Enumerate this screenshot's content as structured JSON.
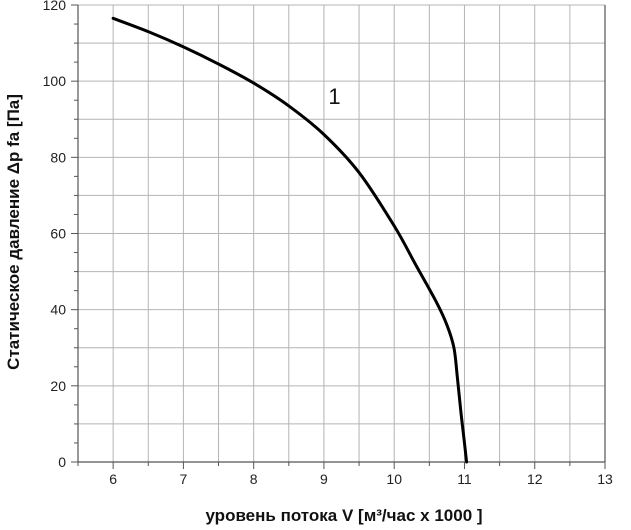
{
  "chart_data": {
    "type": "line",
    "title": "",
    "xlabel": "уровень потока  V [м³/час x 1000 ]",
    "ylabel": "Статическое давление  Δp fa [Па]",
    "xlim": [
      5.5,
      13
    ],
    "ylim": [
      0,
      120
    ],
    "grid": true,
    "x_ticks": [
      6,
      7,
      8,
      9,
      10,
      11,
      12,
      13
    ],
    "y_ticks": [
      0,
      20,
      40,
      60,
      80,
      100,
      120
    ],
    "annotations": [
      {
        "text": "1",
        "x": 9.15,
        "y": 94
      }
    ],
    "series": [
      {
        "color": "#000000",
        "x": [
          6.0,
          6.5,
          7.0,
          7.5,
          8.0,
          8.5,
          9.0,
          9.5,
          10.0,
          10.3,
          10.6,
          10.75,
          10.85,
          10.9,
          10.95,
          11.0,
          11.03
        ],
        "y": [
          116.5,
          113,
          109,
          104.5,
          99.5,
          93.5,
          86,
          76,
          62,
          52,
          42,
          36,
          30,
          22,
          13,
          5,
          0
        ]
      }
    ]
  }
}
